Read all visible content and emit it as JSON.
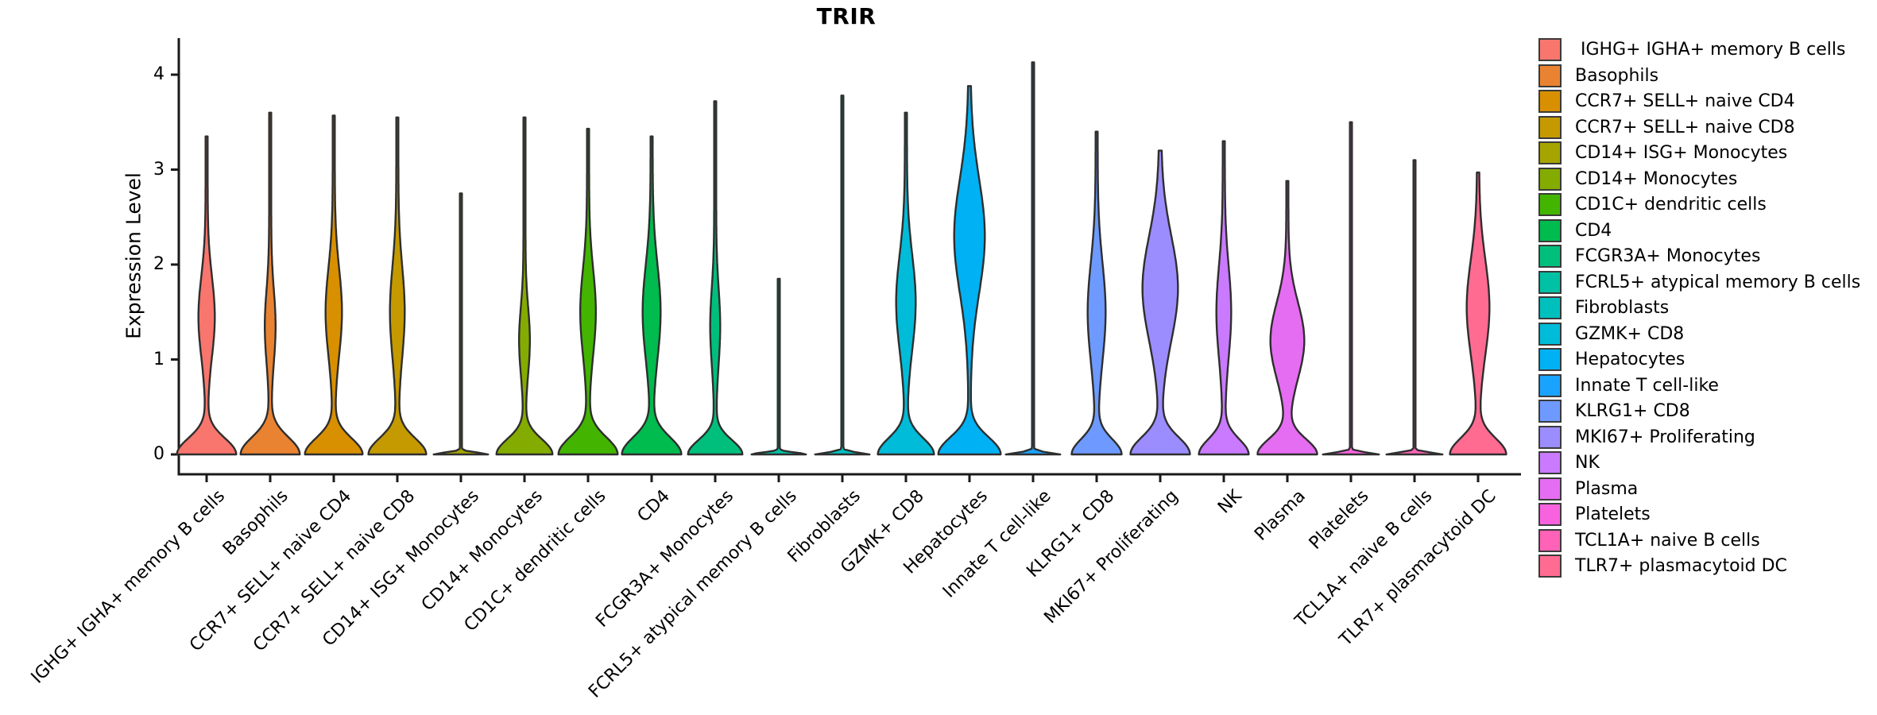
{
  "title": "TRIR",
  "y_axis": {
    "label": "Expression Level",
    "ticks": [
      0,
      1,
      2,
      3,
      4
    ]
  },
  "colors": {
    "background": "#ffffff",
    "violin_outline": "#2e2e2e",
    "axis": "#1a1a1a",
    "text": "#000000",
    "legend_swatch_border": "#3a3a3a"
  },
  "chart_data": {
    "type": "violin",
    "title": "TRIR",
    "xlabel": "",
    "ylabel": "Expression Level",
    "ylim": [
      0,
      4.2
    ],
    "yticks": [
      0,
      1,
      2,
      3,
      4
    ],
    "grid": false,
    "legend_position": "right",
    "categories": [
      "IGHG+ IGHA+ memory B cells",
      "Basophils",
      "CCR7+ SELL+ naive CD4",
      "CCR7+ SELL+ naive CD8",
      "CD14+ ISG+ Monocytes",
      "CD14+ Monocytes",
      "CD1C+ dendritic cells",
      "CD4",
      "FCGR3A+ Monocytes",
      "FCRL5+ atypical memory B cells",
      "Fibroblasts",
      "GZMK+ CD8",
      "Hepatocytes",
      "Innate T cell-like",
      "KLRG1+ CD8",
      "MKI67+ Proliferating",
      "NK",
      "Plasma",
      "Platelets",
      "TCL1A+ naive B cells",
      "TLR7+ plasmacytoid DC"
    ],
    "legend_labels": [
      " IGHG+ IGHA+ memory B cells",
      "Basophils",
      "CCR7+ SELL+ naive CD4",
      "CCR7+ SELL+ naive CD8",
      "CD14+ ISG+ Monocytes",
      "CD14+ Monocytes",
      "CD1C+ dendritic cells",
      "CD4",
      "FCGR3A+ Monocytes",
      "FCRL5+ atypical memory B cells",
      "Fibroblasts",
      "GZMK+ CD8",
      "Hepatocytes",
      "Innate T cell-like",
      "KLRG1+ CD8",
      "MKI67+ Proliferating",
      "NK",
      "Plasma",
      "Platelets",
      "TCL1A+ naive B cells",
      "TLR7+ plasmacytoid DC"
    ],
    "series": [
      {
        "name": "IGHG+ IGHA+ memory B cells",
        "color": "#F8766D",
        "max_expression": 3.35,
        "zero_hw": 36,
        "zero_sigma": 0.17,
        "bulge": {
          "center": 1.45,
          "halfwidth": 9,
          "sigma": 0.42
        }
      },
      {
        "name": "Basophils",
        "color": "#EA8331",
        "max_expression": 3.6,
        "zero_hw": 36,
        "zero_sigma": 0.18,
        "bulge": {
          "center": 1.35,
          "halfwidth": 5.5,
          "sigma": 0.38
        }
      },
      {
        "name": "CCR7+ SELL+ naive CD4",
        "color": "#D89000",
        "max_expression": 3.57,
        "zero_hw": 35,
        "zero_sigma": 0.17,
        "bulge": {
          "center": 1.5,
          "halfwidth": 9,
          "sigma": 0.46
        }
      },
      {
        "name": "CCR7+ SELL+ naive CD8",
        "color": "#C49A00",
        "max_expression": 3.55,
        "zero_hw": 35,
        "zero_sigma": 0.17,
        "bulge": {
          "center": 1.5,
          "halfwidth": 8,
          "sigma": 0.48
        }
      },
      {
        "name": "CD14+ ISG+ Monocytes",
        "color": "#A6A400",
        "max_expression": 2.75,
        "zero_hw": 33,
        "zero_sigma": 0.02,
        "bulge": null
      },
      {
        "name": "CD14+ Monocytes",
        "color": "#84AC00",
        "max_expression": 3.55,
        "zero_hw": 34,
        "zero_sigma": 0.16,
        "bulge": {
          "center": 1.2,
          "halfwidth": 5.5,
          "sigma": 0.35
        }
      },
      {
        "name": "CD1C+ dendritic cells",
        "color": "#43B500",
        "max_expression": 3.43,
        "zero_hw": 36,
        "zero_sigma": 0.18,
        "bulge": {
          "center": 1.5,
          "halfwidth": 8.5,
          "sigma": 0.45
        }
      },
      {
        "name": "CD4",
        "color": "#00BB4E",
        "max_expression": 3.35,
        "zero_hw": 36,
        "zero_sigma": 0.18,
        "bulge": {
          "center": 1.5,
          "halfwidth": 10,
          "sigma": 0.5
        }
      },
      {
        "name": "FCGR3A+ Monocytes",
        "color": "#00BF7D",
        "max_expression": 3.72,
        "zero_hw": 33,
        "zero_sigma": 0.15,
        "bulge": {
          "center": 1.35,
          "halfwidth": 5,
          "sigma": 0.4
        }
      },
      {
        "name": "FCRL5+ atypical memory B cells",
        "color": "#00C1A4",
        "max_expression": 1.85,
        "zero_hw": 33,
        "zero_sigma": 0.02,
        "bulge": null
      },
      {
        "name": "Fibroblasts",
        "color": "#00C0BE",
        "max_expression": 3.78,
        "zero_hw": 33,
        "zero_sigma": 0.02,
        "bulge": null
      },
      {
        "name": "GZMK+ CD8",
        "color": "#00BCD8",
        "max_expression": 3.6,
        "zero_hw": 34,
        "zero_sigma": 0.17,
        "bulge": {
          "center": 1.6,
          "halfwidth": 11,
          "sigma": 0.5
        }
      },
      {
        "name": "Hepatocytes",
        "color": "#00B1F3",
        "max_expression": 3.88,
        "zero_hw": 38,
        "zero_sigma": 0.18,
        "bulge": {
          "center": 2.3,
          "halfwidth": 18,
          "sigma": 0.6
        }
      },
      {
        "name": "Innate T cell-like",
        "color": "#19A3FF",
        "max_expression": 4.13,
        "zero_hw": 33,
        "zero_sigma": 0.02,
        "bulge": null
      },
      {
        "name": "KLRG1+ CD8",
        "color": "#6E9AFF",
        "max_expression": 3.4,
        "zero_hw": 30,
        "zero_sigma": 0.16,
        "bulge": {
          "center": 1.5,
          "halfwidth": 10,
          "sigma": 0.52
        }
      },
      {
        "name": "MKI67+ Proliferating",
        "color": "#9C8DFF",
        "max_expression": 3.2,
        "zero_hw": 36,
        "zero_sigma": 0.18,
        "bulge": {
          "center": 1.75,
          "halfwidth": 21,
          "sigma": 0.55
        }
      },
      {
        "name": "NK",
        "color": "#C97AFF",
        "max_expression": 3.3,
        "zero_hw": 30,
        "zero_sigma": 0.16,
        "bulge": {
          "center": 1.5,
          "halfwidth": 8,
          "sigma": 0.48
        }
      },
      {
        "name": "Plasma",
        "color": "#E56DF2",
        "max_expression": 2.88,
        "zero_hw": 36,
        "zero_sigma": 0.16,
        "bulge": {
          "center": 1.2,
          "halfwidth": 20,
          "sigma": 0.4
        }
      },
      {
        "name": "Platelets",
        "color": "#F962DE",
        "max_expression": 3.5,
        "zero_hw": 34,
        "zero_sigma": 0.02,
        "bulge": null
      },
      {
        "name": "TCL1A+ naive B cells",
        "color": "#FF62B6",
        "max_expression": 3.1,
        "zero_hw": 34,
        "zero_sigma": 0.02,
        "bulge": null
      },
      {
        "name": "TLR7+ plasmacytoid DC",
        "color": "#FF6B91",
        "max_expression": 2.97,
        "zero_hw": 34,
        "zero_sigma": 0.17,
        "bulge": {
          "center": 1.55,
          "halfwidth": 13,
          "sigma": 0.5
        }
      }
    ]
  }
}
